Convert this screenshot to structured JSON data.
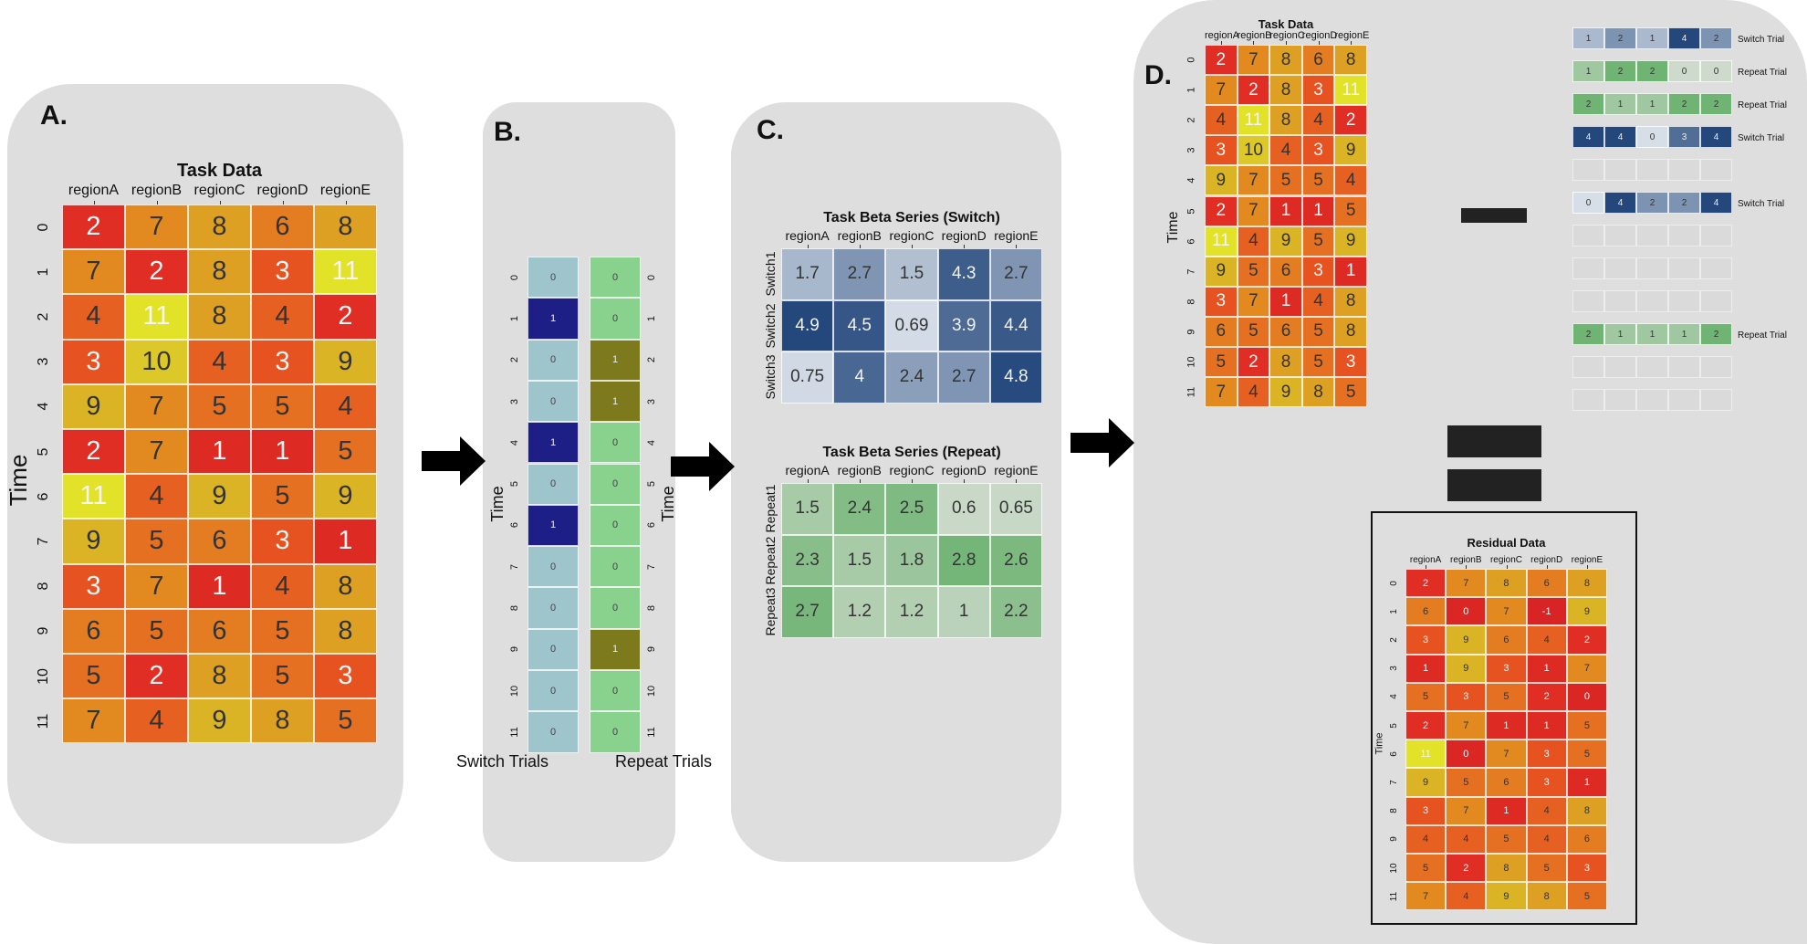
{
  "panels": {
    "a_label": "A.",
    "b_label": "B.",
    "c_label": "C.",
    "d_label": "D."
  },
  "colors": {
    "panel_bg": "#dedede",
    "arrow": "#000000",
    "heat": [
      "#dc2624",
      "#e6521f",
      "#e37f1f",
      "#d9ae22",
      "#e2e125"
    ],
    "switch_on": "#1e1f86",
    "switch_off": "#9ec4cc",
    "repeat_on": "#7d7a1d",
    "repeat_off": "#88d28e"
  },
  "chart_data": [
    {
      "id": "task-data",
      "type": "heatmap",
      "title": "Task Data",
      "columns": [
        "regionA",
        "regionB",
        "regionC",
        "regionD",
        "regionE"
      ],
      "rows": [
        "0",
        "1",
        "2",
        "3",
        "4",
        "5",
        "6",
        "7",
        "8",
        "9",
        "10",
        "11"
      ],
      "ylabel": "Time",
      "values": [
        [
          2,
          7,
          8,
          6,
          8
        ],
        [
          7,
          2,
          8,
          3,
          11
        ],
        [
          4,
          11,
          8,
          4,
          2
        ],
        [
          3,
          10,
          4,
          3,
          9
        ],
        [
          9,
          7,
          5,
          5,
          4
        ],
        [
          2,
          7,
          1,
          1,
          5
        ],
        [
          11,
          4,
          9,
          5,
          9
        ],
        [
          9,
          5,
          6,
          3,
          1
        ],
        [
          3,
          7,
          1,
          4,
          8
        ],
        [
          6,
          5,
          6,
          5,
          8
        ],
        [
          5,
          2,
          8,
          5,
          3
        ],
        [
          7,
          4,
          9,
          8,
          5
        ]
      ]
    },
    {
      "id": "trial-design",
      "type": "heatmap",
      "ylabel": "Time",
      "rows": [
        "0",
        "1",
        "2",
        "3",
        "4",
        "5",
        "6",
        "7",
        "8",
        "9",
        "10",
        "11"
      ],
      "switch_label": "Switch Trials",
      "repeat_label": "Repeat Trials",
      "switch_values": [
        0,
        1,
        0,
        0,
        1,
        0,
        1,
        0,
        0,
        0,
        0,
        0
      ],
      "repeat_values": [
        0,
        0,
        1,
        1,
        0,
        0,
        0,
        0,
        0,
        1,
        0,
        0
      ]
    },
    {
      "id": "beta-switch",
      "type": "heatmap",
      "title": "Task Beta Series (Switch)",
      "columns": [
        "regionA",
        "regionB",
        "regionC",
        "regionD",
        "regionE"
      ],
      "rows": [
        "Switch1",
        "Switch2",
        "Switch3"
      ],
      "values": [
        [
          "1.7",
          "2.7",
          "1.5",
          "4.3",
          "2.7"
        ],
        [
          "4.9",
          "4.5",
          "0.69",
          "3.9",
          "4.4"
        ],
        [
          "0.75",
          "4",
          "2.4",
          "2.7",
          "4.8"
        ]
      ]
    },
    {
      "id": "beta-repeat",
      "type": "heatmap",
      "title": "Task Beta Series (Repeat)",
      "columns": [
        "regionA",
        "regionB",
        "regionC",
        "regionD",
        "regionE"
      ],
      "rows": [
        "Repeat1",
        "Repeat2",
        "Repeat3"
      ],
      "values": [
        [
          "1.5",
          "2.4",
          "2.5",
          "0.6",
          "0.65"
        ],
        [
          "2.3",
          "1.5",
          "1.8",
          "2.8",
          "2.6"
        ],
        [
          "2.7",
          "1.2",
          "1.2",
          "1",
          "2.2"
        ]
      ]
    },
    {
      "id": "d-task-data",
      "type": "heatmap",
      "title": "Task Data",
      "columns": [
        "regionA",
        "regionB",
        "regionC",
        "regionD",
        "regionE"
      ],
      "rows": [
        "0",
        "1",
        "2",
        "3",
        "4",
        "5",
        "6",
        "7",
        "8",
        "9",
        "10",
        "11"
      ],
      "ylabel": "Time",
      "values": [
        [
          2,
          7,
          8,
          6,
          8
        ],
        [
          7,
          2,
          8,
          3,
          11
        ],
        [
          4,
          11,
          8,
          4,
          2
        ],
        [
          3,
          10,
          4,
          3,
          9
        ],
        [
          9,
          7,
          5,
          5,
          4
        ],
        [
          2,
          7,
          1,
          1,
          5
        ],
        [
          11,
          4,
          9,
          5,
          9
        ],
        [
          9,
          5,
          6,
          3,
          1
        ],
        [
          3,
          7,
          1,
          4,
          8
        ],
        [
          6,
          5,
          6,
          5,
          8
        ],
        [
          5,
          2,
          8,
          5,
          3
        ],
        [
          7,
          4,
          9,
          8,
          5
        ]
      ]
    },
    {
      "id": "d-trial-rows",
      "type": "table",
      "rows": [
        {
          "kind": "switch",
          "label": "Switch Trial",
          "values": [
            1,
            2,
            1,
            4,
            2
          ]
        },
        {
          "kind": "repeat",
          "label": "Repeat Trial",
          "values": [
            1,
            2,
            2,
            0,
            0
          ]
        },
        {
          "kind": "repeat",
          "label": "Repeat Trial",
          "values": [
            2,
            1,
            1,
            2,
            2
          ]
        },
        {
          "kind": "switch",
          "label": "Switch Trial",
          "values": [
            4,
            4,
            0,
            3,
            4
          ]
        },
        {
          "kind": "empty",
          "label": "",
          "values": []
        },
        {
          "kind": "switch",
          "label": "Switch Trial",
          "values": [
            0,
            4,
            2,
            2,
            4
          ]
        },
        {
          "kind": "empty",
          "label": "",
          "values": []
        },
        {
          "kind": "empty",
          "label": "",
          "values": []
        },
        {
          "kind": "empty",
          "label": "",
          "values": []
        },
        {
          "kind": "repeat",
          "label": "Repeat Trial",
          "values": [
            2,
            1,
            1,
            1,
            2
          ]
        },
        {
          "kind": "empty",
          "label": "",
          "values": []
        },
        {
          "kind": "empty",
          "label": "",
          "values": []
        }
      ]
    },
    {
      "id": "residual-data",
      "type": "heatmap",
      "title": "Residual Data",
      "columns": [
        "regionA",
        "regionB",
        "regionC",
        "regionD",
        "regionE"
      ],
      "rows": [
        "0",
        "1",
        "2",
        "3",
        "4",
        "5",
        "6",
        "7",
        "8",
        "9",
        "10",
        "11"
      ],
      "ylabel": "Time",
      "values": [
        [
          2,
          7,
          8,
          6,
          8
        ],
        [
          6,
          0,
          7,
          -1,
          9
        ],
        [
          3,
          9,
          6,
          4,
          2
        ],
        [
          1,
          9,
          3,
          1,
          7
        ],
        [
          5,
          3,
          5,
          2,
          0
        ],
        [
          2,
          7,
          1,
          1,
          5
        ],
        [
          11,
          0,
          7,
          3,
          5
        ],
        [
          9,
          5,
          6,
          3,
          1
        ],
        [
          3,
          7,
          1,
          4,
          8
        ],
        [
          4,
          4,
          5,
          4,
          6
        ],
        [
          5,
          2,
          8,
          5,
          3
        ],
        [
          7,
          4,
          9,
          8,
          5
        ]
      ]
    }
  ]
}
